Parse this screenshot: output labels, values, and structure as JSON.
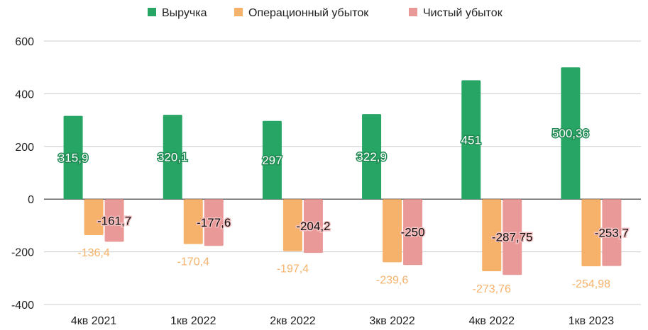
{
  "chart_data": {
    "type": "bar",
    "categories": [
      "4кв 2021",
      "1кв 2022",
      "2кв 2022",
      "3кв 2022",
      "4кв 2022",
      "1кв 2023"
    ],
    "series": [
      {
        "name": "Выручка",
        "color": "#27a565",
        "values": [
          315.9,
          320.1,
          297,
          322.9,
          451,
          500.36
        ],
        "labels": [
          "315,9",
          "320,1",
          "297",
          "322,9",
          "451",
          "500,36"
        ]
      },
      {
        "name": "Операционный убыток",
        "color": "#f6b26b",
        "values": [
          -136.4,
          -170.4,
          -197.4,
          -239.6,
          -273.76,
          -254.98
        ],
        "labels": [
          "-136,4",
          "-170,4",
          "-197,4",
          "-239,6",
          "-273,76",
          "-254,98"
        ]
      },
      {
        "name": "Чистый убыток",
        "color": "#ea9999",
        "values": [
          -161.7,
          -177.6,
          -204.2,
          -250,
          -287.75,
          -253.7
        ],
        "labels": [
          "-161,7",
          "-177,6",
          "-204,2",
          "-250",
          "-287,75",
          "-253,7"
        ]
      }
    ],
    "y_ticks": [
      "600",
      "400",
      "200",
      "0",
      "-200",
      "-400"
    ],
    "ylim": [
      -400,
      600
    ],
    "grid": true,
    "legend_position": "top"
  }
}
